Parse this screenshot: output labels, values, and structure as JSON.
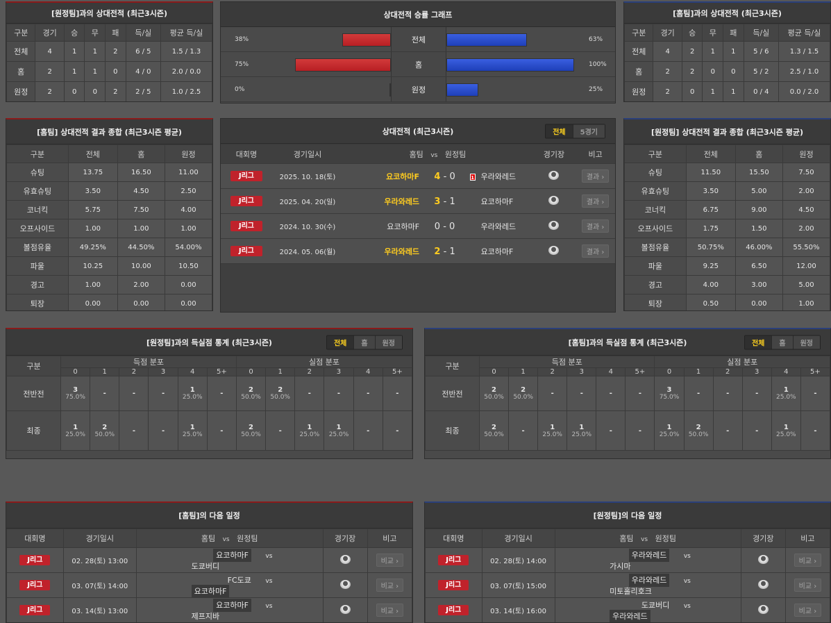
{
  "colors": {
    "accent_yellow": "#ffcc1f",
    "league_red": "#c0222b",
    "away_bar": "#c0222b",
    "home_bar": "#2147c4"
  },
  "away_h2h": {
    "title": "[원정팀]과의 상대전적 (최근3시즌)",
    "headers": [
      "구분",
      "경기",
      "승",
      "무",
      "패",
      "득/실",
      "평균 득/실"
    ],
    "rows": [
      [
        "전체",
        "4",
        "1",
        "1",
        "2",
        "6 / 5",
        "1.5 / 1.3"
      ],
      [
        "홈",
        "2",
        "1",
        "1",
        "0",
        "4 / 0",
        "2.0 / 0.0"
      ],
      [
        "원정",
        "2",
        "0",
        "0",
        "2",
        "2 / 5",
        "1.0 / 2.5"
      ]
    ]
  },
  "home_h2h": {
    "title": "[홈팀]과의 상대전적 (최근3시즌)",
    "headers": [
      "구분",
      "경기",
      "승",
      "무",
      "패",
      "득/실",
      "평균 득/실"
    ],
    "rows": [
      [
        "전체",
        "4",
        "2",
        "1",
        "1",
        "5 / 6",
        "1.3 / 1.5"
      ],
      [
        "홈",
        "2",
        "2",
        "0",
        "0",
        "5 / 2",
        "2.5 / 1.0"
      ],
      [
        "원정",
        "2",
        "0",
        "1",
        "1",
        "0 / 4",
        "0.0 / 2.0"
      ]
    ]
  },
  "graph": {
    "title": "상대전적 승률 그래프",
    "rows": [
      {
        "label": "전체",
        "left": "38%",
        "left_value": 38,
        "right": "63%",
        "right_value": 63
      },
      {
        "label": "홈",
        "left": "75%",
        "left_value": 75,
        "right": "100%",
        "right_value": 100
      },
      {
        "label": "원정",
        "left": "0%",
        "left_value": 0,
        "right": "25%",
        "right_value": 25
      }
    ]
  },
  "home_stats": {
    "title": "[홈팀] 상대전적 결과 종합 (최근3시즌 평균)",
    "headers": [
      "구분",
      "전체",
      "홈",
      "원정"
    ],
    "rows": [
      [
        "슈팅",
        "13.75",
        "16.50",
        "11.00"
      ],
      [
        "유효슈팅",
        "3.50",
        "4.50",
        "2.50"
      ],
      [
        "코너킥",
        "5.75",
        "7.50",
        "4.00"
      ],
      [
        "오프사이드",
        "1.00",
        "1.00",
        "1.00"
      ],
      [
        "볼점유율",
        "49.25%",
        "44.50%",
        "54.00%"
      ],
      [
        "파울",
        "10.25",
        "10.00",
        "10.50"
      ],
      [
        "경고",
        "1.00",
        "2.00",
        "0.00"
      ],
      [
        "퇴장",
        "0.00",
        "0.00",
        "0.00"
      ]
    ]
  },
  "away_stats": {
    "title": "[원정팀] 상대전적 결과 종합 (최근3시즌 평균)",
    "headers": [
      "구분",
      "전체",
      "홈",
      "원정"
    ],
    "rows": [
      [
        "슈팅",
        "11.50",
        "15.50",
        "7.50"
      ],
      [
        "유효슈팅",
        "3.50",
        "5.00",
        "2.00"
      ],
      [
        "코너킥",
        "6.75",
        "9.00",
        "4.50"
      ],
      [
        "오프사이드",
        "1.75",
        "1.50",
        "2.00"
      ],
      [
        "볼점유율",
        "50.75%",
        "46.00%",
        "55.50%"
      ],
      [
        "파울",
        "9.25",
        "6.50",
        "12.00"
      ],
      [
        "경고",
        "4.00",
        "3.00",
        "5.00"
      ],
      [
        "퇴장",
        "0.50",
        "0.00",
        "1.00"
      ]
    ]
  },
  "h2h": {
    "title": "상대전적 (최근3시즌)",
    "tabs": [
      "전체",
      "5경기"
    ],
    "active_tab": "전체",
    "headers": {
      "league": "대회명",
      "date": "경기일시",
      "home": "홈팀",
      "vs": "vs",
      "away": "원정팀",
      "stadium": "경기장",
      "note": "비고"
    },
    "rows": [
      {
        "league": "J리그",
        "date": "2025. 10. 18(토)",
        "home": "요코하마F",
        "hs": "4",
        "sep": "-",
        "as": "0",
        "red_card": "1",
        "away": "우라와레드",
        "winner": "home",
        "button": "결과"
      },
      {
        "league": "J리그",
        "date": "2025. 04. 20(일)",
        "home": "우라와레드",
        "hs": "3",
        "sep": "-",
        "as": "1",
        "away": "요코하마F",
        "winner": "home",
        "button": "결과"
      },
      {
        "league": "J리그",
        "date": "2024. 10. 30(수)",
        "home": "요코하마F",
        "hs": "0",
        "sep": "-",
        "as": "0",
        "away": "우라와레드",
        "winner": "draw",
        "button": "결과"
      },
      {
        "league": "J리그",
        "date": "2024. 05. 06(월)",
        "home": "우라와레드",
        "hs": "2",
        "sep": "-",
        "as": "1",
        "away": "요코하마F",
        "winner": "home",
        "button": "결과"
      }
    ]
  },
  "away_goals": {
    "title": "[원정팀]과의 득실점 통계 (최근3시즌)",
    "tabs": [
      "전체",
      "홈",
      "원정"
    ],
    "active_tab": "전체",
    "head": "구분",
    "scored": "득점 분포",
    "conceded": "실점 분포",
    "cols": [
      "0",
      "1",
      "2",
      "3",
      "4",
      "5+",
      "0",
      "1",
      "2",
      "3",
      "4",
      "5+"
    ],
    "rows": [
      {
        "label": "전반전",
        "cells": [
          [
            "3",
            "75.0%"
          ],
          [
            "-"
          ],
          [
            "-"
          ],
          [
            "-"
          ],
          [
            "1",
            "25.0%"
          ],
          [
            "-"
          ],
          [
            "2",
            "50.0%"
          ],
          [
            "2",
            "50.0%"
          ],
          [
            "-"
          ],
          [
            "-"
          ],
          [
            "-"
          ],
          [
            "-"
          ]
        ]
      },
      {
        "label": "최종",
        "cells": [
          [
            "1",
            "25.0%"
          ],
          [
            "2",
            "50.0%"
          ],
          [
            "-"
          ],
          [
            "-"
          ],
          [
            "1",
            "25.0%"
          ],
          [
            "-"
          ],
          [
            "2",
            "50.0%"
          ],
          [
            "-"
          ],
          [
            "1",
            "25.0%"
          ],
          [
            "1",
            "25.0%"
          ],
          [
            "-"
          ],
          [
            "-"
          ]
        ]
      }
    ]
  },
  "home_goals": {
    "title": "[홈팀]과의 득실점 통계 (최근3시즌)",
    "tabs": [
      "전체",
      "홈",
      "원정"
    ],
    "active_tab": "전체",
    "head": "구분",
    "scored": "득점 분포",
    "conceded": "실점 분포",
    "cols": [
      "0",
      "1",
      "2",
      "3",
      "4",
      "5+",
      "0",
      "1",
      "2",
      "3",
      "4",
      "5+"
    ],
    "rows": [
      {
        "label": "전반전",
        "cells": [
          [
            "2",
            "50.0%"
          ],
          [
            "2",
            "50.0%"
          ],
          [
            "-"
          ],
          [
            "-"
          ],
          [
            "-"
          ],
          [
            "-"
          ],
          [
            "3",
            "75.0%"
          ],
          [
            "-"
          ],
          [
            "-"
          ],
          [
            "-"
          ],
          [
            "1",
            "25.0%"
          ],
          [
            "-"
          ]
        ]
      },
      {
        "label": "최종",
        "cells": [
          [
            "2",
            "50.0%"
          ],
          [
            "-"
          ],
          [
            "1",
            "25.0%"
          ],
          [
            "1",
            "25.0%"
          ],
          [
            "-"
          ],
          [
            "-"
          ],
          [
            "1",
            "25.0%"
          ],
          [
            "2",
            "50.0%"
          ],
          [
            "-"
          ],
          [
            "-"
          ],
          [
            "1",
            "25.0%"
          ],
          [
            "-"
          ]
        ]
      }
    ]
  },
  "home_next": {
    "title": "[홈팀]의 다음 일정",
    "headers": {
      "league": "대회명",
      "date": "경기일시",
      "home": "홈팀",
      "vs": "vs",
      "away": "원정팀",
      "stadium": "경기장",
      "note": "비고"
    },
    "rows": [
      {
        "league": "J리그",
        "date": "02. 28(토) 13:00",
        "home": "요코하마F",
        "vs": "vs",
        "away": "도쿄버디",
        "focus": "home",
        "button": "비교"
      },
      {
        "league": "J리그",
        "date": "03. 07(토) 14:00",
        "home": "FC도쿄",
        "vs": "vs",
        "away": "요코하마F",
        "focus": "away",
        "button": "비교"
      },
      {
        "league": "J리그",
        "date": "03. 14(토) 13:00",
        "home": "요코하마F",
        "vs": "vs",
        "away": "제프지바",
        "focus": "home",
        "button": "비교"
      }
    ]
  },
  "away_next": {
    "title": "[원정팀]의 다음 일정",
    "headers": {
      "league": "대회명",
      "date": "경기일시",
      "home": "홈팀",
      "vs": "vs",
      "away": "원정팀",
      "stadium": "경기장",
      "note": "비고"
    },
    "rows": [
      {
        "league": "J리그",
        "date": "02. 28(토) 14:00",
        "home": "우라와레드",
        "vs": "vs",
        "away": "가시마",
        "focus": "home",
        "button": "비교"
      },
      {
        "league": "J리그",
        "date": "03. 07(토) 15:00",
        "home": "우라와레드",
        "vs": "vs",
        "away": "미토홀리호크",
        "focus": "home",
        "button": "비교"
      },
      {
        "league": "J리그",
        "date": "03. 14(토) 16:00",
        "home": "도쿄버디",
        "vs": "vs",
        "away": "우라와레드",
        "focus": "away",
        "button": "비교"
      }
    ]
  }
}
